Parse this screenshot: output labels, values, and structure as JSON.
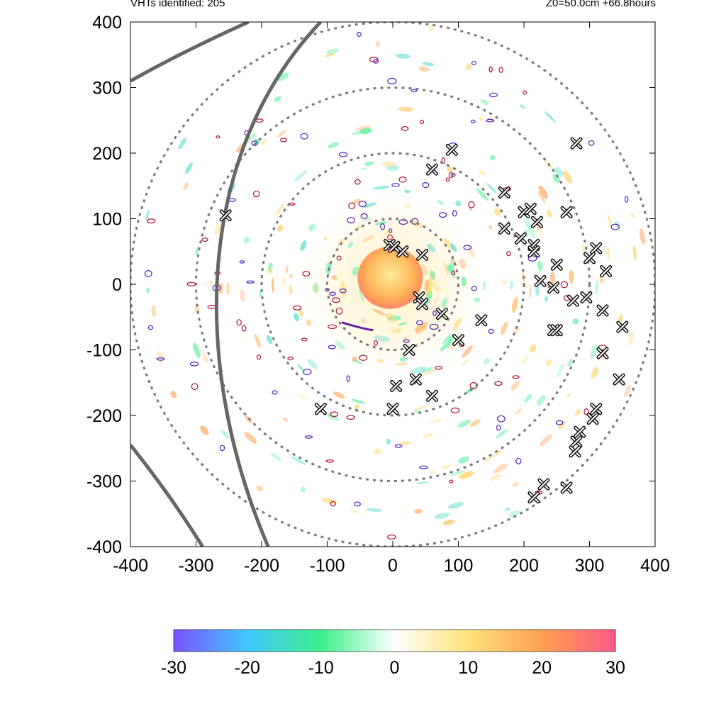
{
  "header": {
    "left": "VHTs identified: 205",
    "right": "Z0=50.0cm  +66.8hours"
  },
  "chart_data": {
    "type": "scatter",
    "title": "",
    "xlabel": "",
    "ylabel": "",
    "xlim": [
      -400,
      400
    ],
    "ylim": [
      -400,
      400
    ],
    "x_ticks": [
      "-400",
      "-300",
      "-200",
      "-100",
      "0",
      "100",
      "200",
      "300",
      "400"
    ],
    "y_ticks": [
      "400",
      "300",
      "200",
      "100",
      "0",
      "-100",
      "-200",
      "-300",
      "-400"
    ],
    "grid": false,
    "background_field": "color-shaded scalar field with a warm core centred near (0, 10) and spiral bands",
    "range_rings": {
      "radii": [
        100,
        200,
        300,
        400
      ],
      "center": [
        0,
        0
      ],
      "style": "dashed",
      "color": "#777777"
    },
    "series": [
      {
        "marker": "x",
        "points": [
          [
            -5,
            60
          ],
          [
            2,
            57
          ],
          [
            15,
            50
          ],
          [
            45,
            45
          ],
          [
            40,
            -20
          ],
          [
            45,
            -30
          ],
          [
            75,
            -45
          ],
          [
            135,
            -55
          ],
          [
            100,
            -85
          ],
          [
            25,
            -100
          ],
          [
            5,
            -155
          ],
          [
            35,
            -145
          ],
          [
            60,
            -170
          ],
          [
            -110,
            -190
          ],
          [
            0,
            -190
          ],
          [
            60,
            175
          ],
          [
            90,
            205
          ],
          [
            170,
            140
          ],
          [
            200,
            110
          ],
          [
            210,
            115
          ],
          [
            220,
            95
          ],
          [
            170,
            85
          ],
          [
            195,
            70
          ],
          [
            215,
            60
          ],
          [
            215,
            50
          ],
          [
            225,
            5
          ],
          [
            250,
            30
          ],
          [
            245,
            -5
          ],
          [
            265,
            110
          ],
          [
            280,
            215
          ],
          [
            295,
            -20
          ],
          [
            275,
            -25
          ],
          [
            310,
            55
          ],
          [
            300,
            40
          ],
          [
            325,
            20
          ],
          [
            320,
            -40
          ],
          [
            350,
            -65
          ],
          [
            245,
            -70
          ],
          [
            250,
            -70
          ],
          [
            320,
            -105
          ],
          [
            345,
            -145
          ],
          [
            310,
            -190
          ],
          [
            305,
            -205
          ],
          [
            285,
            -225
          ],
          [
            280,
            -240
          ],
          [
            278,
            -255
          ],
          [
            265,
            -310
          ],
          [
            230,
            -305
          ],
          [
            215,
            -325
          ],
          [
            -255,
            105
          ]
        ]
      }
    ],
    "curves": [
      {
        "style": "solid-thick",
        "color": "#666666",
        "description": "track curve 1"
      },
      {
        "style": "solid-thick",
        "color": "#666666",
        "description": "track curve 2"
      }
    ],
    "colorbar": {
      "min": -30,
      "max": 30,
      "ticks": [
        "-30",
        "-20",
        "-10",
        "0",
        "10",
        "20",
        "30"
      ],
      "colors": [
        "#7a52ff",
        "#3fc8ff",
        "#3ef08a",
        "#ffffff",
        "#ffe27a",
        "#ffa050",
        "#ff5a88"
      ]
    }
  }
}
